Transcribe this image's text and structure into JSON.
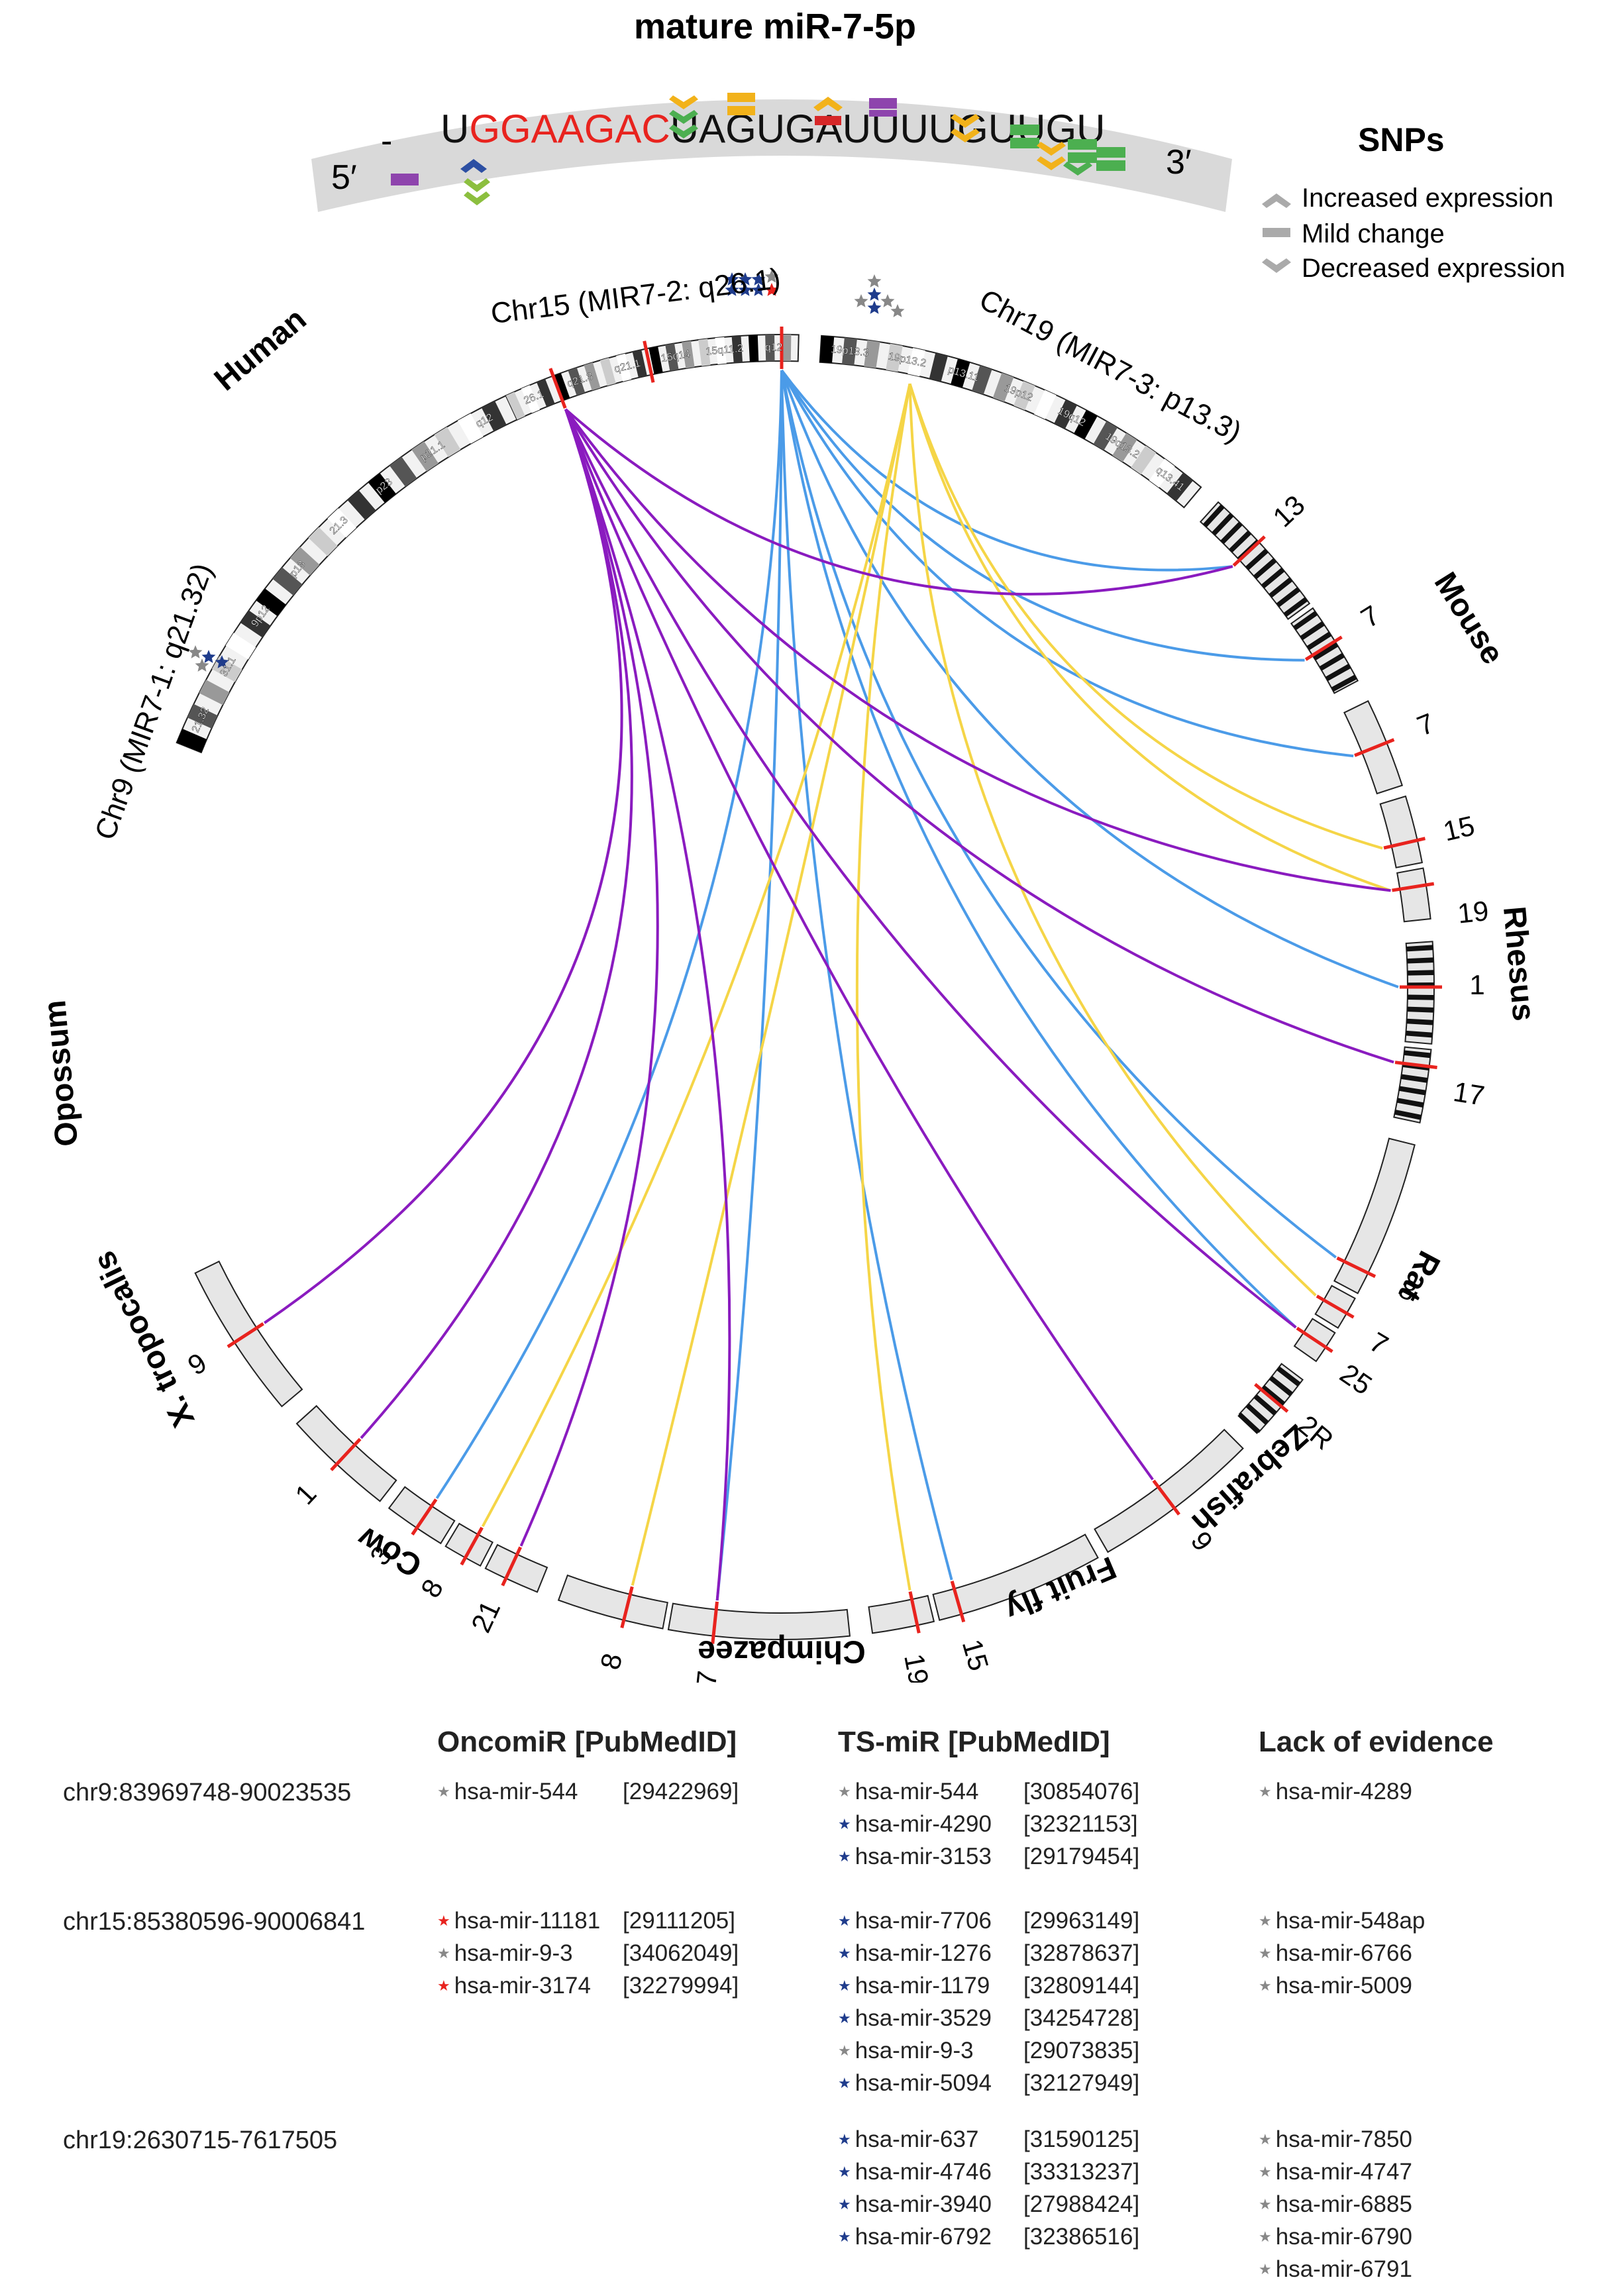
{
  "title": "mature miR-7-5p",
  "sequence": {
    "five_prime": "5′",
    "three_prime": "3′",
    "dash": "-",
    "red": "GGAAGAC",
    "black_prefix": "U",
    "black_suffix": "UAGUGAUUUUGUUGU"
  },
  "snp_legend": {
    "title": "SNPs",
    "items": [
      "Increased expression",
      "Mild change",
      "Decreased expression"
    ]
  },
  "chromosomes": {
    "chr15": "Chr15 (MIR7-2: q26.1)",
    "chr19": "Chr19 (MIR7-3: p13.3)",
    "chr9": "Chr9 (MIR7-1: q21.32)",
    "band_chr15": [
      "26.1",
      "q21.3",
      "q21.1",
      "15q14",
      "15q11.2",
      "q12"
    ],
    "band_chr19": [
      "19p13.3",
      "19p13.2",
      "p13.11",
      "19p12",
      "19q12",
      "19q13.2",
      "q13.41"
    ],
    "band_chr9": [
      "21.32",
      "31.1",
      "9p12",
      "p13",
      "21.3",
      "p23",
      "p21.1",
      "q12"
    ]
  },
  "species": [
    "Human",
    "Mouse",
    "Rhesus",
    "Rat",
    "Zebrafish",
    "Fruit fly",
    "Chimpazee",
    "Cow",
    "X. tropocalis",
    "Opossum"
  ],
  "segment_labels": [
    "13",
    "7",
    "7",
    "15",
    "19",
    "1",
    "17",
    "8",
    "7",
    "25",
    "2R",
    "9",
    "15",
    "19",
    "7",
    "8",
    "21",
    "8",
    "3",
    "1",
    "9"
  ],
  "colors": {
    "chr15_links": "#4b9be8",
    "chr19_links": "#f5d547",
    "chr9_links": "#8a1bbf",
    "marker": "#e8231e",
    "segment_fill": "#e6e6e6",
    "star_red": "#e8231e",
    "star_blue": "#1f3c8c",
    "star_gray": "#888888"
  },
  "table": {
    "headers": [
      "OncomiR [PubMedID]",
      "TS-miR [PubMedID]",
      "Lack of evidence"
    ],
    "rows": [
      {
        "region": "chr9:83969748-90023535",
        "oncomir": [
          {
            "star": "gray",
            "name": "hsa-mir-544",
            "pmid": "[29422969]"
          }
        ],
        "tsmir": [
          {
            "star": "gray",
            "name": "hsa-mir-544",
            "pmid": "[30854076]"
          },
          {
            "star": "blue",
            "name": "hsa-mir-4290",
            "pmid": "[32321153]"
          },
          {
            "star": "blue",
            "name": "hsa-mir-3153",
            "pmid": "[29179454]"
          }
        ],
        "lack": [
          {
            "star": "gray",
            "name": "hsa-mir-4289"
          }
        ]
      },
      {
        "region": "chr15:85380596-90006841",
        "oncomir": [
          {
            "star": "red",
            "name": "hsa-mir-11181",
            "pmid": "[29111205]"
          },
          {
            "star": "gray",
            "name": "hsa-mir-9-3",
            "pmid": "[34062049]"
          },
          {
            "star": "red",
            "name": "hsa-mir-3174",
            "pmid": "[32279994]"
          }
        ],
        "tsmir": [
          {
            "star": "blue",
            "name": "hsa-mir-7706",
            "pmid": "[29963149]"
          },
          {
            "star": "blue",
            "name": "hsa-mir-1276",
            "pmid": "[32878637]"
          },
          {
            "star": "blue",
            "name": "hsa-mir-1179",
            "pmid": "[32809144]"
          },
          {
            "star": "blue",
            "name": "hsa-mir-3529",
            "pmid": "[34254728]"
          },
          {
            "star": "gray",
            "name": "hsa-mir-9-3",
            "pmid": "[29073835]"
          },
          {
            "star": "blue",
            "name": "hsa-mir-5094",
            "pmid": "[32127949]"
          }
        ],
        "lack": [
          {
            "star": "gray",
            "name": "hsa-mir-548ap"
          },
          {
            "star": "gray",
            "name": "hsa-mir-6766"
          },
          {
            "star": "gray",
            "name": "hsa-mir-5009"
          }
        ]
      },
      {
        "region": "chr19:2630715-7617505",
        "oncomir": [],
        "tsmir": [
          {
            "star": "blue",
            "name": "hsa-mir-637",
            "pmid": "[31590125]"
          },
          {
            "star": "blue",
            "name": "hsa-mir-4746",
            "pmid": "[33313237]"
          },
          {
            "star": "blue",
            "name": "hsa-mir-3940",
            "pmid": "[27988424]"
          },
          {
            "star": "blue",
            "name": "hsa-mir-6792",
            "pmid": "[32386516]"
          }
        ],
        "lack": [
          {
            "star": "gray",
            "name": "hsa-mir-7850"
          },
          {
            "star": "gray",
            "name": "hsa-mir-4747"
          },
          {
            "star": "gray",
            "name": "hsa-mir-6885"
          },
          {
            "star": "gray",
            "name": "hsa-mir-6790"
          },
          {
            "star": "gray",
            "name": "hsa-mir-6791"
          }
        ]
      }
    ]
  }
}
